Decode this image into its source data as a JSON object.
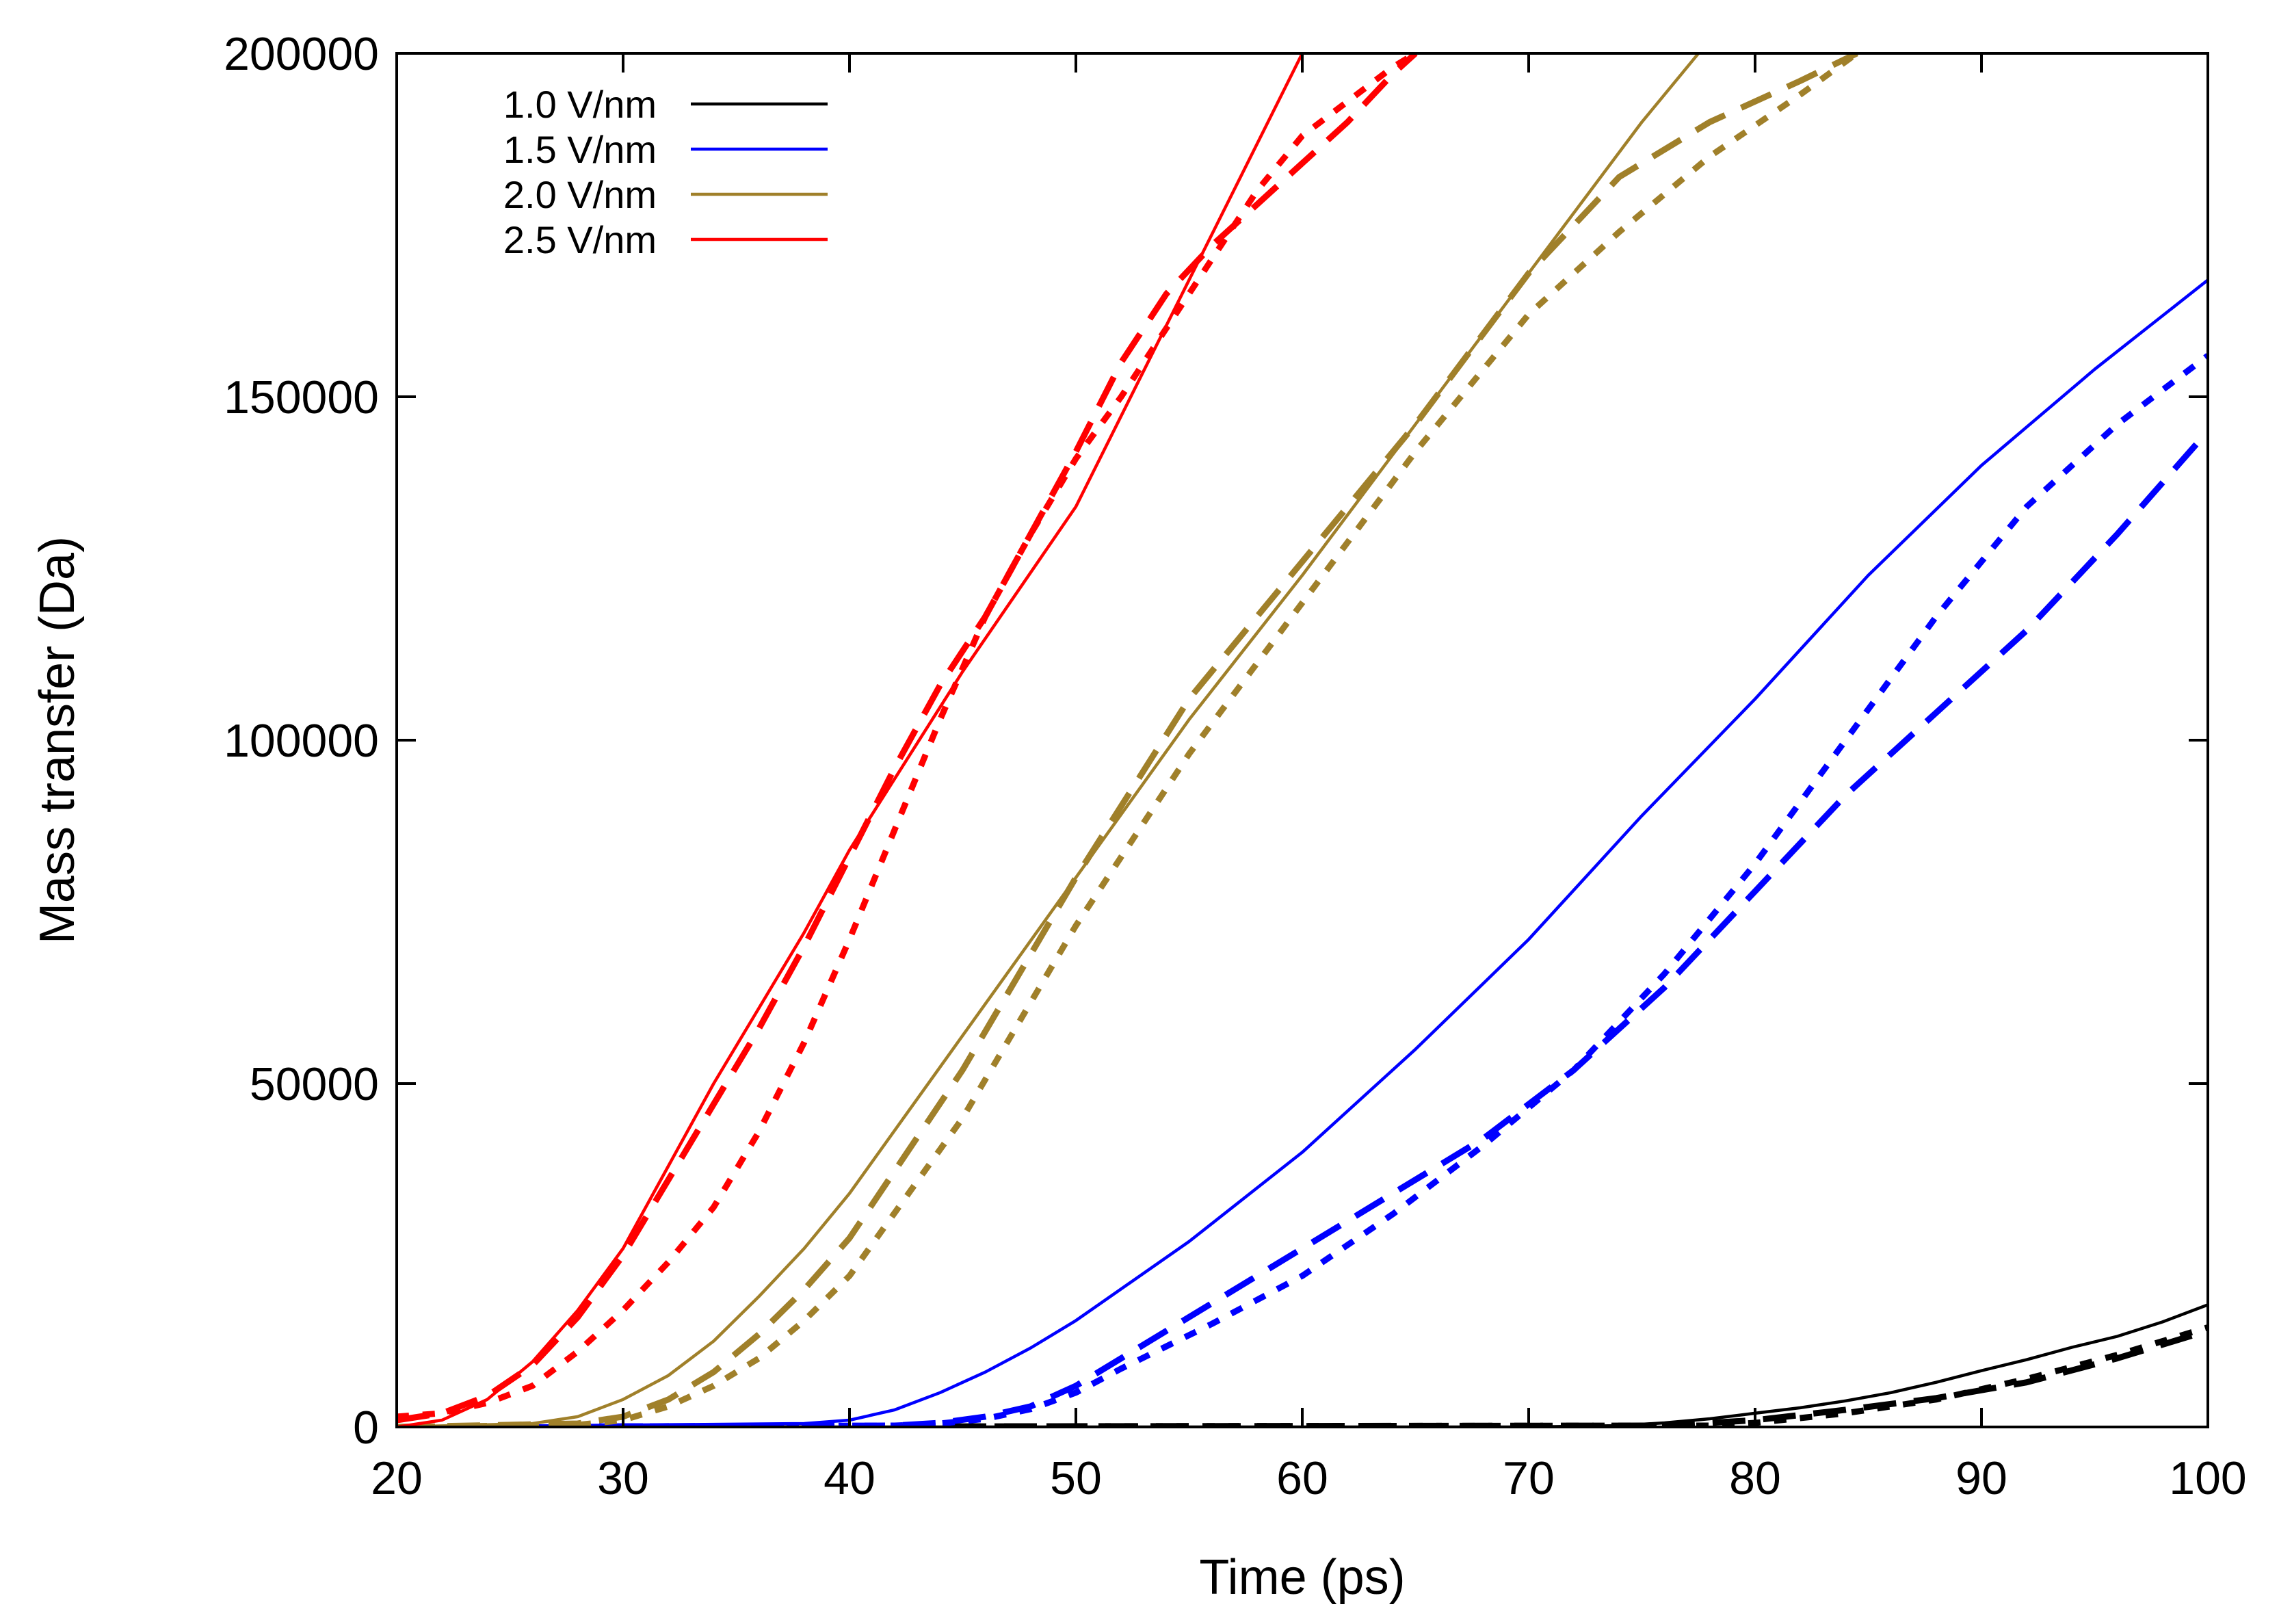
{
  "chart_data": {
    "type": "line",
    "title": "",
    "xlabel": "Time (ps)",
    "ylabel": "Mass transfer (Da)",
    "xlim": [
      20,
      100
    ],
    "ylim": [
      0,
      200000
    ],
    "xticks": [
      20,
      30,
      40,
      50,
      60,
      70,
      80,
      90,
      100
    ],
    "yticks": [
      0,
      50000,
      100000,
      150000,
      200000
    ],
    "grid": false,
    "legend_position": "top-left",
    "legend": [
      {
        "label": "1.0 V/nm",
        "color": "#000000"
      },
      {
        "label": "1.5 V/nm",
        "color": "#0000ff"
      },
      {
        "label": "2.0 V/nm",
        "color": "#a0802a"
      },
      {
        "label": "2.5 V/nm",
        "color": "#ff0000"
      }
    ],
    "series": [
      {
        "name": "1.0 V/nm (solid)",
        "color": "#000000",
        "style": "solid",
        "x": [
          20,
          70,
          74,
          76,
          78,
          80,
          82,
          84,
          86,
          88,
          90,
          92,
          94,
          96,
          98,
          100
        ],
        "y": [
          0,
          0,
          200,
          600,
          1200,
          2000,
          2800,
          3800,
          5000,
          6500,
          8200,
          9800,
          11600,
          13200,
          15300,
          17800
        ]
      },
      {
        "name": "1.0 V/nm (dashed)",
        "color": "#000000",
        "style": "dashed",
        "x": [
          20,
          76,
          80,
          84,
          88,
          92,
          96,
          100
        ],
        "y": [
          0,
          200,
          1000,
          2500,
          4200,
          6500,
          10000,
          14000
        ]
      },
      {
        "name": "1.0 V/nm (dotted)",
        "color": "#000000",
        "style": "dotted",
        "x": [
          20,
          78,
          80,
          84,
          88,
          92,
          96,
          100
        ],
        "y": [
          0,
          200,
          600,
          2000,
          4000,
          7000,
          10500,
          14500
        ]
      },
      {
        "name": "1.5 V/nm (solid)",
        "color": "#0000ff",
        "style": "solid",
        "x": [
          20,
          38,
          40,
          42,
          44,
          46,
          48,
          50,
          55,
          60,
          65,
          70,
          75,
          80,
          85,
          90,
          95,
          100
        ],
        "y": [
          0,
          500,
          1000,
          2500,
          5000,
          8000,
          11500,
          15500,
          27000,
          40000,
          55000,
          71000,
          89000,
          106000,
          124000,
          140000,
          154000,
          167000
        ]
      },
      {
        "name": "1.5 V/nm (dashed)",
        "color": "#0000ff",
        "style": "dashed",
        "x": [
          20,
          42,
          44,
          46,
          48,
          50,
          52,
          56,
          60,
          64,
          68,
          72,
          76,
          80,
          84,
          88,
          92,
          96,
          100
        ],
        "y": [
          0,
          200,
          600,
          1500,
          3000,
          6000,
          10000,
          18000,
          26000,
          34000,
          42000,
          52000,
          64000,
          78000,
          92000,
          104000,
          116000,
          130000,
          145000
        ]
      },
      {
        "name": "1.5 V/nm (dotted)",
        "color": "#0000ff",
        "style": "dotted",
        "x": [
          20,
          42,
          44,
          46,
          48,
          50,
          52,
          56,
          60,
          64,
          68,
          72,
          76,
          80,
          84,
          88,
          92,
          96,
          100
        ],
        "y": [
          0,
          200,
          500,
          1200,
          2600,
          5000,
          8500,
          15000,
          22000,
          31000,
          41000,
          52000,
          66000,
          82000,
          100000,
          118000,
          134000,
          146000,
          156000
        ]
      },
      {
        "name": "2.0 V/nm (solid)",
        "color": "#a0802a",
        "style": "solid",
        "x": [
          20,
          26,
          28,
          30,
          32,
          34,
          36,
          38,
          40,
          45,
          50,
          55,
          60,
          65,
          70,
          75,
          77.5
        ],
        "y": [
          0,
          500,
          1500,
          4000,
          7500,
          12500,
          19000,
          26000,
          34000,
          57000,
          80000,
          103000,
          124000,
          146000,
          168000,
          190000,
          200000
        ]
      },
      {
        "name": "2.0 V/nm (dashed)",
        "color": "#a0802a",
        "style": "dashed",
        "x": [
          20,
          28,
          30,
          32,
          34,
          36,
          38,
          40,
          45,
          50,
          55,
          60,
          65,
          70,
          74,
          78,
          82,
          84.5
        ],
        "y": [
          0,
          500,
          1500,
          4000,
          8000,
          13500,
          20000,
          27500,
          52000,
          80000,
          106000,
          126000,
          146000,
          168000,
          182000,
          190000,
          196000,
          200000
        ]
      },
      {
        "name": "2.0 V/nm (dotted)",
        "color": "#a0802a",
        "style": "dotted",
        "x": [
          20,
          28,
          30,
          32,
          34,
          36,
          38,
          40,
          45,
          50,
          55,
          60,
          65,
          70,
          74,
          78,
          82,
          84.5
        ],
        "y": [
          0,
          300,
          1000,
          3000,
          6000,
          10000,
          15500,
          22000,
          45000,
          73000,
          98000,
          120000,
          142000,
          162000,
          174000,
          185000,
          194000,
          200000
        ]
      },
      {
        "name": "2.5 V/nm (solid)",
        "color": "#ff0000",
        "style": "solid",
        "x": [
          20,
          22,
          24,
          26,
          28,
          30,
          32,
          34,
          36,
          38,
          40,
          45,
          50,
          55,
          60
        ],
        "y": [
          0,
          1000,
          4000,
          9500,
          17000,
          26000,
          38000,
          50000,
          61000,
          72000,
          84000,
          110000,
          134000,
          167000,
          200000
        ]
      },
      {
        "name": "2.5 V/nm (dashed)",
        "color": "#ff0000",
        "style": "dashed",
        "x": [
          20,
          22,
          24,
          26,
          28,
          30,
          32,
          34,
          36,
          38,
          40,
          42,
          44,
          46,
          48,
          50,
          52,
          54,
          56,
          58,
          60,
          62,
          64,
          65
        ],
        "y": [
          1000,
          2000,
          4500,
          9000,
          16000,
          25000,
          36000,
          47000,
          58000,
          70000,
          83000,
          96000,
          108000,
          118000,
          130000,
          142000,
          155000,
          165000,
          172000,
          178000,
          184000,
          190000,
          197000,
          200000
        ]
      },
      {
        "name": "2.5 V/nm (dotted)",
        "color": "#ff0000",
        "style": "dotted",
        "x": [
          20,
          22,
          24,
          26,
          28,
          30,
          32,
          34,
          36,
          38,
          40,
          42,
          44,
          46,
          48,
          50,
          52,
          54,
          56,
          58,
          60,
          62,
          64,
          65
        ],
        "y": [
          1500,
          2000,
          3500,
          6000,
          11000,
          17000,
          24000,
          32000,
          43000,
          56000,
          71000,
          87000,
          103000,
          118000,
          130000,
          141000,
          150000,
          160000,
          170000,
          180000,
          188000,
          193000,
          198000,
          200000
        ]
      }
    ]
  }
}
